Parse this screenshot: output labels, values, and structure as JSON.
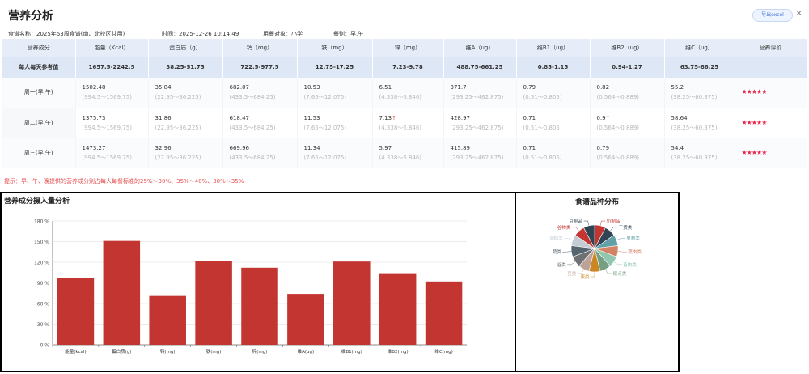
{
  "page": {
    "title": "营养分析",
    "export_label": "导出excel",
    "close_glyph": "✕"
  },
  "meta": {
    "recipe": "食谱名称：2025年53周食谱(南、北校区共用)",
    "time": "时间：2025-12-26 10:14:49",
    "target": "用餐对象：小学",
    "meals": "餐别：早,午"
  },
  "table": {
    "headers": [
      "营养成分",
      "能量（Kcal）",
      "蛋白质（g）",
      "钙（mg）",
      "铁（mg）",
      "锌（mg）",
      "维A（ug）",
      "维B1（ug）",
      "维B2（ug）",
      "维C（ug）",
      "营养评价"
    ],
    "reference": [
      "每人每天参考值",
      "1657.5-2242.5",
      "38.25-51.75",
      "722.5-977.5",
      "12.75-17.25",
      "7.23-9.78",
      "488.75-661.25",
      "0.85-1.15",
      "0.94-1.27",
      "63.75-86.25"
    ],
    "rows": [
      {
        "day": "周一(早,午)",
        "cells": [
          {
            "v": "1502.48",
            "r": "(994.5～1569.75)"
          },
          {
            "v": "35.84",
            "r": "(22.95～36.225)"
          },
          {
            "v": "682.07",
            "r": "(433.5～684.25)"
          },
          {
            "v": "10.53",
            "r": "(7.65～12.075)"
          },
          {
            "v": "6.51",
            "r": "(4.338～6.846)"
          },
          {
            "v": "371.7",
            "r": "(293.25～462.875)"
          },
          {
            "v": "0.79",
            "r": "(0.51～0.805)"
          },
          {
            "v": "0.82",
            "r": "(0.564～0.889)"
          },
          {
            "v": "55.2",
            "r": "(38.25～60.375)"
          }
        ],
        "rating": "★★★★★"
      },
      {
        "day": "周二(早,午)",
        "cells": [
          {
            "v": "1375.73",
            "r": "(994.5～1569.75)"
          },
          {
            "v": "31.86",
            "r": "(22.95～36.225)"
          },
          {
            "v": "618.47",
            "r": "(433.5～684.25)"
          },
          {
            "v": "11.53",
            "r": "(7.65～12.075)"
          },
          {
            "v": "7.13",
            "r": "(4.338～6.846)",
            "up": "↑"
          },
          {
            "v": "428.97",
            "r": "(293.25～462.875)"
          },
          {
            "v": "0.71",
            "r": "(0.51～0.805)"
          },
          {
            "v": "0.9",
            "r": "(0.564～0.889)",
            "up": "↑"
          },
          {
            "v": "58.64",
            "r": "(38.25～60.375)"
          }
        ],
        "rating": "★★★★★"
      },
      {
        "day": "周三(早,午)",
        "cells": [
          {
            "v": "1473.27",
            "r": "(994.5～1569.75)"
          },
          {
            "v": "32.96",
            "r": "(22.95～36.225)"
          },
          {
            "v": "669.96",
            "r": "(433.5～684.25)"
          },
          {
            "v": "11.34",
            "r": "(7.65～12.075)"
          },
          {
            "v": "5.97",
            "r": "(4.338～6.846)"
          },
          {
            "v": "415.89",
            "r": "(293.25～462.875)"
          },
          {
            "v": "0.71",
            "r": "(0.51～0.805)"
          },
          {
            "v": "0.79",
            "r": "(0.564～0.889)"
          },
          {
            "v": "54.4",
            "r": "(38.25～60.375)"
          }
        ],
        "rating": "★★★★★"
      }
    ]
  },
  "tip": "提示：早、午、晚提供的营养成分别占每人每餐标准的25%～30%、35%～40%、30%～35%",
  "charts": {
    "bar_title": "营养成分摄入量分析",
    "pie_title": "食谱品种分布"
  },
  "chart_data": [
    {
      "type": "bar",
      "categories": [
        "能量(kcal)",
        "蛋白质(g)",
        "钙(mg)",
        "铁(mg)",
        "锌(mg)",
        "维A(ug)",
        "维B1(mg)",
        "维B2(mg)",
        "维C(mg)"
      ],
      "values": [
        97,
        151,
        71,
        122,
        112,
        74,
        121,
        104,
        92
      ],
      "ylim": [
        0,
        180
      ],
      "yticks": [
        "0 %",
        "30 %",
        "60 %",
        "90 %",
        "120 %",
        "150 %",
        "180 %"
      ],
      "color": "#c23531",
      "grid": true
    },
    {
      "type": "pie",
      "slices": [
        {
          "label": "奶制品",
          "value": 1,
          "color": "#c23531"
        },
        {
          "label": "干货类",
          "value": 1,
          "color": "#2f4554"
        },
        {
          "label": "果蔬类",
          "value": 1,
          "color": "#61a0a8"
        },
        {
          "label": "蔬肉类",
          "value": 1,
          "color": "#d48265"
        },
        {
          "label": "畜肉类",
          "value": 1,
          "color": "#91c7ae"
        },
        {
          "label": "糕点类",
          "value": 1,
          "color": "#749f83"
        },
        {
          "label": "蛋类",
          "value": 1,
          "color": "#ca8622"
        },
        {
          "label": "豆类",
          "value": 1,
          "color": "#bda29a"
        },
        {
          "label": "谷类",
          "value": 1,
          "color": "#6e7074"
        },
        {
          "label": "蔬类",
          "value": 1,
          "color": "#546570"
        },
        {
          "label": "调料类",
          "value": 1,
          "color": "#c4ccd3"
        },
        {
          "label": "谷物类",
          "value": 1,
          "color": "#c23531"
        },
        {
          "label": "豆制品",
          "value": 1,
          "color": "#2f4554"
        }
      ]
    }
  ]
}
